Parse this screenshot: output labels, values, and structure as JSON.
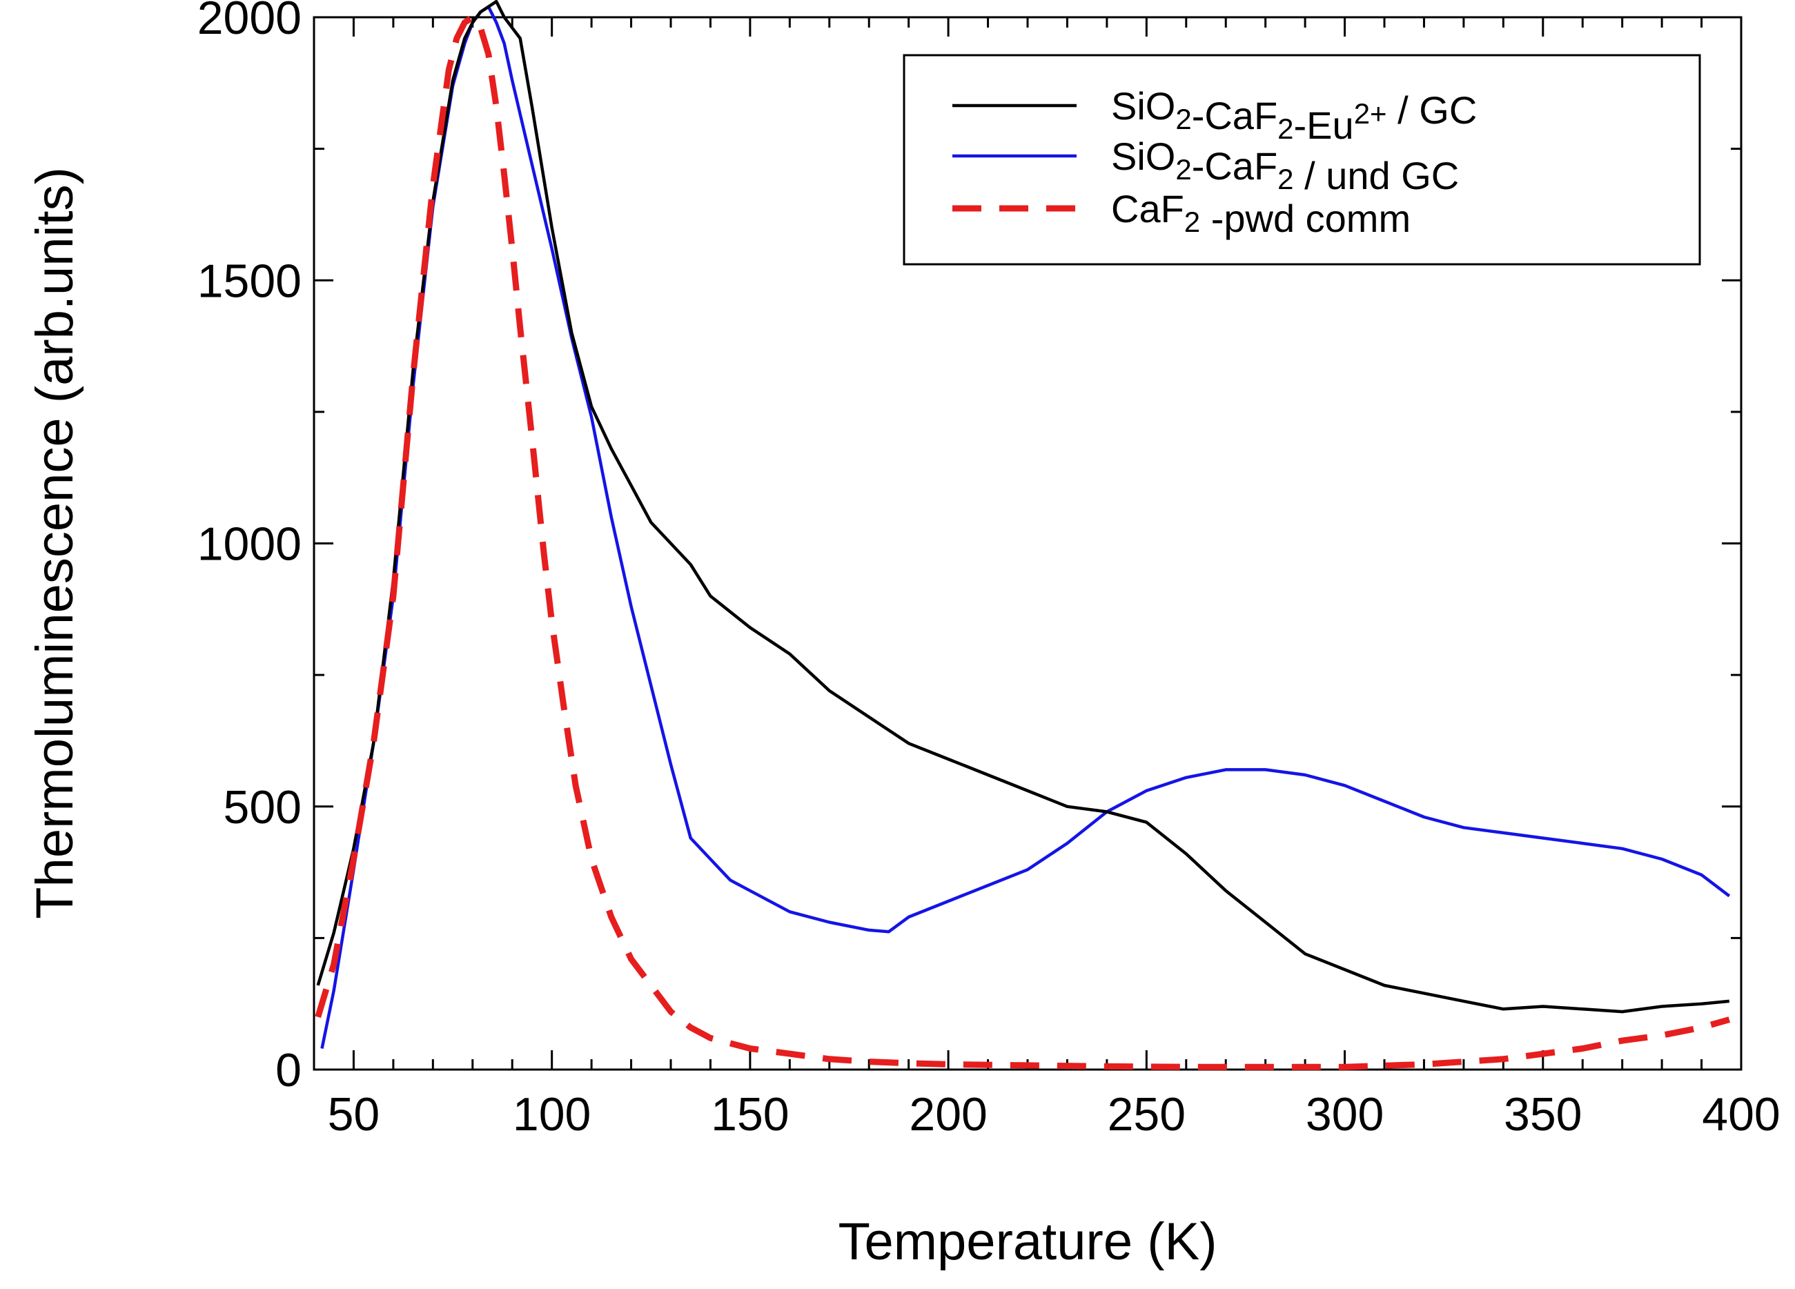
{
  "chart_data": {
    "type": "line",
    "title": "",
    "xlabel": "Temperature (K)",
    "ylabel": "Thermoluminescence (arb.units)",
    "xlim": [
      40,
      400
    ],
    "ylim": [
      0,
      2000
    ],
    "x_ticks": [
      50,
      100,
      150,
      200,
      250,
      300,
      350,
      400
    ],
    "y_ticks": [
      0,
      500,
      1000,
      1500,
      2000
    ],
    "x_tick_labels": [
      "50",
      "100",
      "150",
      "200",
      "250",
      "300",
      "350",
      "400"
    ],
    "y_tick_labels": [
      "0",
      "500",
      "1000",
      "1500",
      "2000"
    ],
    "grid": false,
    "legend_position": "top-right",
    "series": [
      {
        "name": "SiO2-CaF2-Eu2+ / GC",
        "legend_parts": [
          {
            "t": "SiO",
            "s": ""
          },
          {
            "t": "2",
            "s": "sub"
          },
          {
            "t": "-CaF",
            "s": ""
          },
          {
            "t": "2",
            "s": "sub"
          },
          {
            "t": "-Eu",
            "s": ""
          },
          {
            "t": "2+",
            "s": "sup"
          },
          {
            "t": " / GC",
            "s": ""
          }
        ],
        "color": "#000000",
        "style": "solid",
        "x": [
          41,
          45,
          50,
          55,
          60,
          65,
          70,
          75,
          78,
          80,
          82,
          84,
          86,
          88,
          90,
          92,
          95,
          100,
          105,
          110,
          115,
          120,
          125,
          130,
          135,
          140,
          150,
          160,
          170,
          180,
          190,
          200,
          210,
          220,
          230,
          240,
          250,
          260,
          270,
          280,
          290,
          300,
          310,
          320,
          330,
          340,
          350,
          360,
          370,
          380,
          390,
          397
        ],
        "y": [
          160,
          260,
          420,
          620,
          930,
          1330,
          1650,
          1880,
          1960,
          1990,
          2010,
          2020,
          2030,
          2000,
          1980,
          1960,
          1830,
          1600,
          1400,
          1260,
          1180,
          1110,
          1040,
          1000,
          960,
          900,
          840,
          790,
          720,
          670,
          620,
          590,
          560,
          530,
          500,
          490,
          470,
          410,
          340,
          280,
          220,
          190,
          160,
          145,
          130,
          115,
          120,
          115,
          110,
          120,
          125,
          130
        ]
      },
      {
        "name": "SiO2-CaF2 / und GC",
        "legend_parts": [
          {
            "t": "SiO",
            "s": ""
          },
          {
            "t": "2",
            "s": "sub"
          },
          {
            "t": "-CaF",
            "s": ""
          },
          {
            "t": "2",
            "s": "sub"
          },
          {
            "t": " / und GC",
            "s": ""
          }
        ],
        "color": "#1414e6",
        "style": "solid",
        "x": [
          42,
          45,
          50,
          55,
          60,
          65,
          70,
          75,
          78,
          80,
          82,
          84,
          86,
          88,
          90,
          95,
          100,
          105,
          110,
          115,
          120,
          125,
          130,
          135,
          140,
          145,
          150,
          160,
          170,
          180,
          185,
          190,
          200,
          210,
          220,
          230,
          240,
          250,
          260,
          270,
          280,
          290,
          300,
          310,
          320,
          330,
          340,
          350,
          360,
          370,
          380,
          390,
          397
        ],
        "y": [
          40,
          150,
          380,
          620,
          900,
          1300,
          1640,
          1870,
          1950,
          1990,
          2010,
          2020,
          1990,
          1950,
          1880,
          1720,
          1560,
          1390,
          1240,
          1050,
          880,
          730,
          580,
          440,
          400,
          360,
          340,
          300,
          280,
          265,
          262,
          290,
          320,
          350,
          380,
          430,
          490,
          530,
          555,
          570,
          570,
          560,
          540,
          510,
          480,
          460,
          450,
          440,
          430,
          420,
          400,
          370,
          330
        ]
      },
      {
        "name": "CaF2-pwd comm",
        "legend_parts": [
          {
            "t": "CaF",
            "s": ""
          },
          {
            "t": "2",
            "s": "sub"
          },
          {
            "t": " -pwd comm",
            "s": ""
          }
        ],
        "color": "#e61e1e",
        "style": "dashed",
        "x": [
          41,
          45,
          50,
          55,
          60,
          65,
          70,
          74,
          76,
          78,
          80,
          82,
          84,
          86,
          88,
          90,
          92,
          95,
          98,
          100,
          103,
          106,
          110,
          115,
          120,
          125,
          130,
          135,
          140,
          150,
          160,
          170,
          180,
          190,
          200,
          220,
          240,
          260,
          280,
          300,
          320,
          340,
          360,
          370,
          380,
          390,
          397
        ],
        "y": [
          100,
          200,
          400,
          620,
          900,
          1320,
          1680,
          1900,
          1960,
          1990,
          2000,
          1980,
          1930,
          1830,
          1700,
          1560,
          1410,
          1200,
          980,
          850,
          690,
          540,
          400,
          290,
          210,
          160,
          110,
          80,
          60,
          40,
          30,
          20,
          15,
          12,
          10,
          8,
          6,
          5,
          5,
          5,
          10,
          20,
          40,
          55,
          65,
          80,
          95
        ]
      }
    ]
  }
}
